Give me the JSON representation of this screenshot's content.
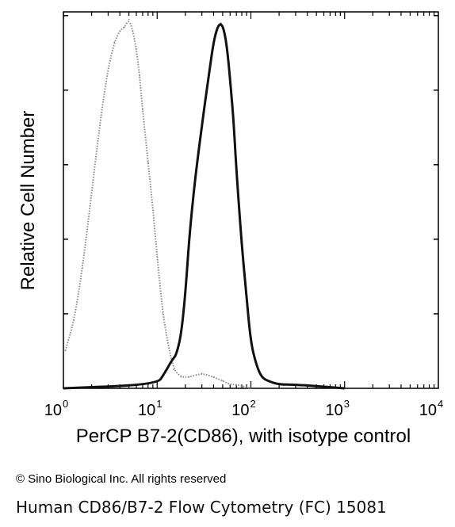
{
  "chart_data": {
    "type": "histogram",
    "xlabel": "PerCP B7-2(CD86), with isotype control",
    "ylabel": "Relative Cell Number",
    "xscale": "log",
    "xlim": [
      1,
      10000
    ],
    "ylim": [
      0,
      100
    ],
    "x_ticks": [
      {
        "base": "10",
        "exp": "0",
        "value": 1
      },
      {
        "base": "10",
        "exp": "1",
        "value": 10
      },
      {
        "base": "10",
        "exp": "2",
        "value": 100
      },
      {
        "base": "10",
        "exp": "3",
        "value": 1000
      },
      {
        "base": "10",
        "exp": "4",
        "value": 10000
      }
    ],
    "y_tick_count": 5,
    "grid": false,
    "series": [
      {
        "style": "dotted-gray",
        "color": "#8a8a8a",
        "x": [
          1.05,
          1.3,
          1.6,
          2.0,
          2.5,
          3.0,
          3.5,
          4.0,
          4.5,
          5.0,
          5.5,
          6.0,
          6.5,
          7.0,
          8.0,
          9.0,
          10.0,
          11.5,
          13.0,
          15.0,
          18.0,
          22.0,
          30.0,
          40.0,
          50.0,
          60.0,
          70.0,
          100.0
        ],
        "y": [
          10,
          18,
          32,
          52,
          72,
          85,
          92,
          95,
          96,
          98,
          95,
          90,
          83,
          74,
          60,
          48,
          35,
          20,
          12,
          5,
          3,
          3,
          4,
          3,
          2,
          1,
          1,
          0
        ]
      },
      {
        "style": "solid-black",
        "color": "#111111",
        "x": [
          1.0,
          10.0,
          12.0,
          14.0,
          15.0,
          16.0,
          18.0,
          20.0,
          22.0,
          25.0,
          28.0,
          32.0,
          36.0,
          40.0,
          44.0,
          48.0,
          52.0,
          56.0,
          60.0,
          65.0,
          70.0,
          80.0,
          90.0,
          100.0,
          115.0,
          130.0,
          150.0,
          200.0,
          300.0,
          1000.0
        ],
        "y": [
          0,
          1,
          4,
          7,
          8,
          9,
          14,
          25,
          40,
          54,
          64,
          75,
          84,
          92,
          96,
          97,
          95,
          90,
          82,
          72,
          58,
          38,
          24,
          12,
          6,
          3,
          2,
          1,
          1,
          0
        ]
      }
    ]
  },
  "footer": {
    "copyright": "© Sino Biological Inc. All rights reserved",
    "caption": "Human CD86/B7-2 Flow Cytometry (FC) 15081"
  }
}
